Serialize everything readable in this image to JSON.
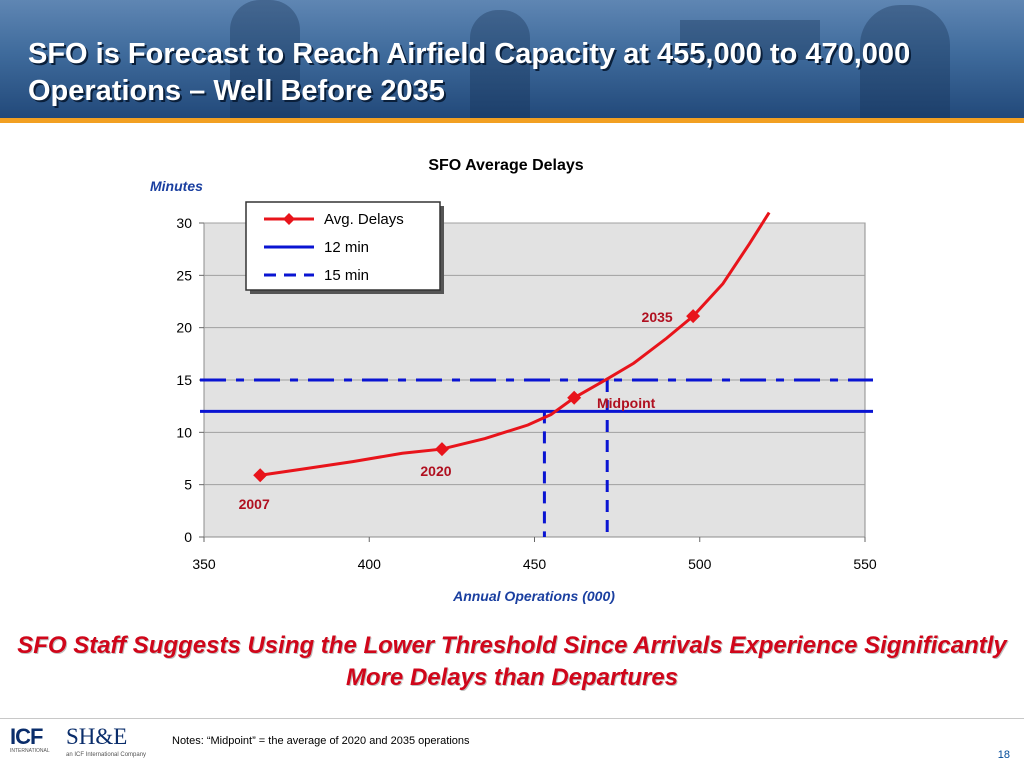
{
  "slide": {
    "title": "SFO is Forecast to Reach Airfield Capacity at 455,000 to 470,000 Operations – Well Before 2035",
    "subtitle": "SFO Staff Suggests Using the Lower Threshold Since Arrivals Experience Significantly More Delays than Departures",
    "notes": "Notes: “Midpoint” = the average of 2020 and 2035 operations",
    "page_number": "18",
    "logos": {
      "icf": "ICF",
      "icf_tagline": "INTERNATIONAL",
      "she": "SH&E",
      "she_tagline": "an ICF International Company"
    }
  },
  "colors": {
    "header": "#3f6b9c",
    "accent_bar": "#f2a022",
    "series_red": "#e8141b",
    "threshold_blue": "#0a14d2",
    "plot_bg": "#e2e2e2",
    "label_red": "#b01020",
    "axis_label_blue": "#1a3fa0"
  },
  "chart_data": {
    "type": "line",
    "title": "SFO Average Delays",
    "ylabel": "Minutes",
    "xlabel": "Annual Operations (000)",
    "xlim": [
      350,
      550
    ],
    "ylim": [
      0,
      30
    ],
    "xticks": [
      350,
      400,
      450,
      500,
      550
    ],
    "yticks": [
      0,
      5,
      10,
      15,
      20,
      25,
      30
    ],
    "grid": "horizontal",
    "legend_position": "top-left",
    "series": [
      {
        "name": "Avg. Delays",
        "color": "#e8141b",
        "marker": "diamond",
        "x": [
          367,
          380,
          395,
          410,
          422,
          435,
          448,
          455,
          462,
          472,
          480,
          490,
          498,
          507,
          515,
          521
        ],
        "y": [
          5.9,
          6.5,
          7.2,
          8.0,
          8.4,
          9.4,
          10.7,
          11.7,
          13.3,
          15.1,
          16.6,
          19.0,
          21.1,
          24.2,
          28.0,
          31.0
        ],
        "markers": [
          {
            "x": 367,
            "y": 5.9,
            "label": "2007"
          },
          {
            "x": 422,
            "y": 8.4,
            "label": "2020"
          },
          {
            "x": 462,
            "y": 13.3,
            "label": "Midpoint"
          },
          {
            "x": 498,
            "y": 21.1,
            "label": "2035"
          }
        ]
      },
      {
        "name": "12 min",
        "y": 12,
        "style": "solid",
        "color": "#0a14d2"
      },
      {
        "name": "15 min",
        "y": 15,
        "style": "dashdot",
        "color": "#0a14d2"
      }
    ],
    "drop_lines": [
      {
        "x": 453,
        "y": 12
      },
      {
        "x": 472,
        "y": 15
      }
    ]
  }
}
